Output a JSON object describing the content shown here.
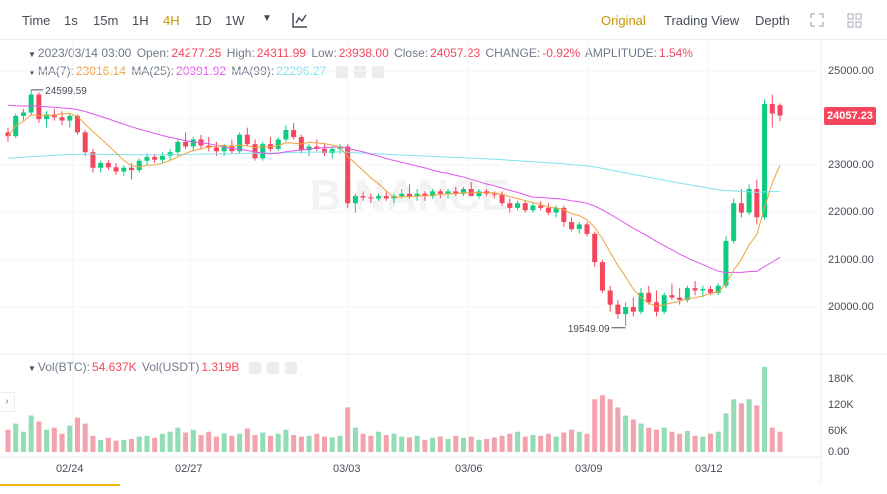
{
  "toolbar": {
    "intervals": [
      {
        "label": "Time",
        "active": false
      },
      {
        "label": "1s",
        "active": false
      },
      {
        "label": "15m",
        "active": false
      },
      {
        "label": "1H",
        "active": false
      },
      {
        "label": "4H",
        "active": true
      },
      {
        "label": "1D",
        "active": false
      },
      {
        "label": "1W",
        "active": false
      }
    ],
    "views": [
      {
        "label": "Original",
        "active": true
      },
      {
        "label": "Trading View",
        "active": false
      },
      {
        "label": "Depth",
        "active": false
      }
    ]
  },
  "ohlc": {
    "datetime": "2023/03/14 03:00",
    "open_label": "Open:",
    "open": "24277.25",
    "high_label": "High:",
    "high": "24311.99",
    "low_label": "Low:",
    "low": "23938.00",
    "close_label": "Close:",
    "close": "24057.23",
    "change_label": "CHANGE:",
    "change": "-0.92%",
    "amplitude_label": "AMPLITUDE:",
    "amplitude": "1.54%"
  },
  "ma": {
    "ma7_label": "MA(7):",
    "ma7": "23016.14",
    "ma25_label": "MA(25):",
    "ma25": "20991.92",
    "ma99_label": "MA(99):",
    "ma99": "22296.27"
  },
  "volume": {
    "btc_label": "Vol(BTC):",
    "btc": "54.637K",
    "usdt_label": "Vol(USDT)",
    "usdt": "1.319B"
  },
  "price_axis": [
    "25000.00",
    "24000.00",
    "23000.00",
    "22000.00",
    "21000.00",
    "20000.00"
  ],
  "volume_axis": [
    "180K",
    "120K",
    "60K",
    "0.00"
  ],
  "date_axis": [
    "02/24",
    "02/27",
    "03/03",
    "03/06",
    "03/09",
    "03/12"
  ],
  "current_price": "24057.23",
  "high_marker": "24599.59",
  "low_marker": "19549.09",
  "watermark": "BINANCE",
  "side_toggle": "›",
  "colors": {
    "up": "#0ecb81",
    "down": "#f6465d",
    "ma7": "#f0a23b",
    "ma25": "#e056f0",
    "ma99": "#7fe3ee",
    "accent": "#c99400"
  },
  "chart_data": {
    "type": "candlestick",
    "ylim": [
      19400,
      25350
    ],
    "candles": [
      [
        23700,
        23800,
        23500,
        23620
      ],
      [
        23620,
        24100,
        23580,
        24050
      ],
      [
        24050,
        24200,
        23950,
        24120
      ],
      [
        24120,
        24600,
        24050,
        24500
      ],
      [
        24500,
        24550,
        23900,
        23980
      ],
      [
        23980,
        24150,
        23800,
        24080
      ],
      [
        24080,
        24200,
        23950,
        24020
      ],
      [
        24020,
        24150,
        23850,
        23950
      ],
      [
        23950,
        24100,
        23800,
        24050
      ],
      [
        24050,
        24080,
        23650,
        23700
      ],
      [
        23700,
        23750,
        23200,
        23280
      ],
      [
        23280,
        23350,
        22850,
        22950
      ],
      [
        22950,
        23100,
        22850,
        23050
      ],
      [
        23050,
        23120,
        22900,
        22960
      ],
      [
        22960,
        23050,
        22800,
        22870
      ],
      [
        22870,
        23000,
        22780,
        22950
      ],
      [
        22950,
        23050,
        22700,
        22900
      ],
      [
        22900,
        23150,
        22850,
        23100
      ],
      [
        23100,
        23250,
        23000,
        23180
      ],
      [
        23180,
        23250,
        23050,
        23120
      ],
      [
        23120,
        23280,
        23050,
        23200
      ],
      [
        23200,
        23350,
        23100,
        23280
      ],
      [
        23280,
        23550,
        23200,
        23500
      ],
      [
        23500,
        23700,
        23350,
        23400
      ],
      [
        23400,
        23600,
        23300,
        23550
      ],
      [
        23550,
        23650,
        23350,
        23420
      ],
      [
        23420,
        23600,
        23300,
        23380
      ],
      [
        23380,
        23500,
        23200,
        23300
      ],
      [
        23300,
        23450,
        23200,
        23420
      ],
      [
        23420,
        23550,
        23250,
        23300
      ],
      [
        23300,
        23700,
        23250,
        23650
      ],
      [
        23650,
        23800,
        23400,
        23450
      ],
      [
        23450,
        23550,
        23100,
        23150
      ],
      [
        23150,
        23500,
        23100,
        23450
      ],
      [
        23450,
        23600,
        23300,
        23350
      ],
      [
        23350,
        23600,
        23300,
        23550
      ],
      [
        23550,
        23850,
        23500,
        23750
      ],
      [
        23750,
        23900,
        23550,
        23600
      ],
      [
        23600,
        23650,
        23250,
        23320
      ],
      [
        23320,
        23450,
        23200,
        23400
      ],
      [
        23400,
        23550,
        23300,
        23350
      ],
      [
        23350,
        23450,
        23200,
        23260
      ],
      [
        23260,
        23400,
        23150,
        23350
      ],
      [
        23350,
        23450,
        23250,
        23400
      ],
      [
        23400,
        23450,
        22100,
        22200
      ],
      [
        22200,
        22400,
        22000,
        22350
      ],
      [
        22350,
        22450,
        22250,
        22320
      ],
      [
        22320,
        22400,
        22200,
        22300
      ],
      [
        22300,
        22400,
        22250,
        22350
      ],
      [
        22350,
        22450,
        22250,
        22300
      ],
      [
        22300,
        22400,
        22200,
        22350
      ],
      [
        22350,
        22500,
        22300,
        22400
      ],
      [
        22400,
        22600,
        22300,
        22350
      ],
      [
        22350,
        22500,
        22250,
        22400
      ],
      [
        22400,
        22450,
        22250,
        22350
      ],
      [
        22350,
        22500,
        22300,
        22450
      ],
      [
        22450,
        22500,
        22300,
        22400
      ],
      [
        22400,
        22500,
        22300,
        22450
      ],
      [
        22450,
        22550,
        22350,
        22400
      ],
      [
        22400,
        22550,
        22350,
        22500
      ],
      [
        22500,
        22650,
        22400,
        22350
      ],
      [
        22350,
        22500,
        22300,
        22450
      ],
      [
        22450,
        22500,
        22350,
        22400
      ],
      [
        22400,
        22450,
        22300,
        22380
      ],
      [
        22380,
        22450,
        22150,
        22200
      ],
      [
        22200,
        22300,
        22000,
        22100
      ],
      [
        22100,
        22250,
        22050,
        22200
      ],
      [
        22200,
        22250,
        22000,
        22050
      ],
      [
        22050,
        22200,
        22000,
        22150
      ],
      [
        22150,
        22250,
        22050,
        22100
      ],
      [
        22100,
        22200,
        21950,
        22000
      ],
      [
        22000,
        22150,
        21900,
        22100
      ],
      [
        22100,
        22150,
        21700,
        21800
      ],
      [
        21800,
        21900,
        21600,
        21650
      ],
      [
        21650,
        21800,
        21550,
        21750
      ],
      [
        21750,
        21800,
        21500,
        21550
      ],
      [
        21550,
        21600,
        20850,
        20950
      ],
      [
        20950,
        21000,
        20300,
        20350
      ],
      [
        20350,
        20450,
        19900,
        20050
      ],
      [
        20050,
        20150,
        19750,
        19850
      ],
      [
        19850,
        20100,
        19600,
        20000
      ],
      [
        20000,
        20200,
        19800,
        19900
      ],
      [
        19900,
        20400,
        19850,
        20300
      ],
      [
        20300,
        20450,
        20050,
        20100
      ],
      [
        20100,
        20350,
        19800,
        19900
      ],
      [
        19900,
        20300,
        19850,
        20250
      ],
      [
        20250,
        20500,
        20150,
        20200
      ],
      [
        20200,
        20400,
        20050,
        20150
      ],
      [
        20150,
        20450,
        20100,
        20400
      ],
      [
        20400,
        20550,
        20250,
        20350
      ],
      [
        20350,
        20450,
        20200,
        20380
      ],
      [
        20380,
        20450,
        20250,
        20300
      ],
      [
        20300,
        20500,
        20250,
        20450
      ],
      [
        20450,
        21500,
        20400,
        21400
      ],
      [
        21400,
        22300,
        21350,
        22200
      ],
      [
        22200,
        22500,
        21900,
        22000
      ],
      [
        22000,
        22600,
        21950,
        22500
      ],
      [
        22500,
        22700,
        21750,
        21900
      ],
      [
        21900,
        24400,
        21850,
        24300
      ],
      [
        24300,
        24500,
        23800,
        24100
      ],
      [
        24277,
        24312,
        23938,
        24057
      ]
    ],
    "volumes": [
      55,
      70,
      50,
      90,
      75,
      55,
      60,
      45,
      65,
      85,
      70,
      40,
      30,
      35,
      28,
      30,
      32,
      38,
      40,
      35,
      45,
      50,
      60,
      48,
      55,
      42,
      50,
      38,
      46,
      40,
      45,
      58,
      42,
      48,
      40,
      45,
      55,
      42,
      38,
      40,
      45,
      38,
      36,
      40,
      110,
      60,
      45,
      40,
      50,
      42,
      45,
      38,
      36,
      40,
      30,
      35,
      38,
      32,
      40,
      35,
      38,
      30,
      32,
      36,
      40,
      45,
      50,
      38,
      42,
      40,
      45,
      38,
      48,
      55,
      50,
      45,
      130,
      140,
      130,
      110,
      90,
      80,
      70,
      60,
      55,
      60,
      50,
      45,
      52,
      40,
      38,
      45,
      50,
      95,
      130,
      120,
      130,
      115,
      210,
      60,
      50
    ]
  }
}
